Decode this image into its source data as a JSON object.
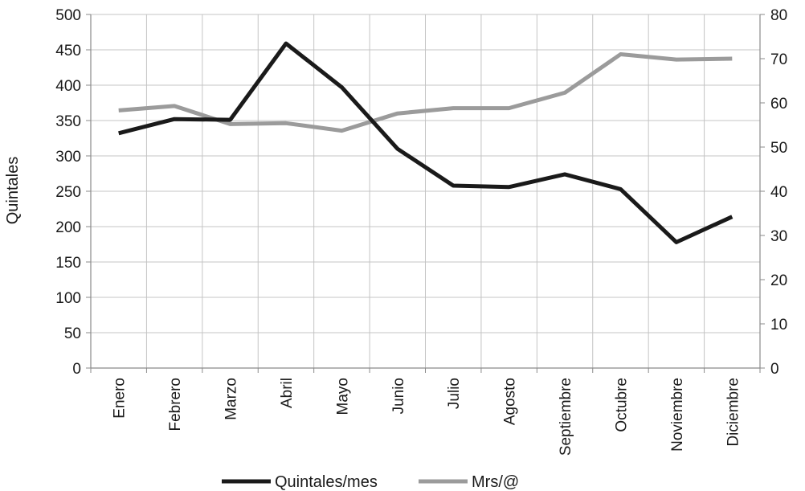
{
  "chart_data": {
    "type": "line",
    "categories": [
      "Enero",
      "Febrero",
      "Marzo",
      "Abril",
      "Mayo",
      "Junio",
      "Julio",
      "Agosto",
      "Septiembre",
      "Octubre",
      "Noviembre",
      "Diciembre"
    ],
    "series": [
      {
        "name": "Quintales/mes",
        "axis": "left",
        "color": "#1a1a1a",
        "values": [
          332,
          352,
          351,
          459,
          397,
          310,
          258,
          256,
          274,
          253,
          178,
          214
        ]
      },
      {
        "name": "Mrs/@",
        "axis": "right",
        "color": "#9b9b9b",
        "values": [
          58.3,
          59.3,
          55.2,
          55.4,
          53.7,
          57.6,
          58.8,
          58.8,
          62.3,
          71.0,
          69.8,
          70.0
        ]
      }
    ],
    "ylabel": "Quintales",
    "ylim": [
      0,
      500
    ],
    "yticks": [
      0,
      50,
      100,
      150,
      200,
      250,
      300,
      350,
      400,
      450,
      500
    ],
    "y2label": "",
    "y2lim": [
      0,
      80
    ],
    "y2ticks": [
      0,
      10,
      20,
      30,
      40,
      50,
      60,
      70,
      80
    ],
    "grid": true,
    "legend_position": "bottom"
  }
}
